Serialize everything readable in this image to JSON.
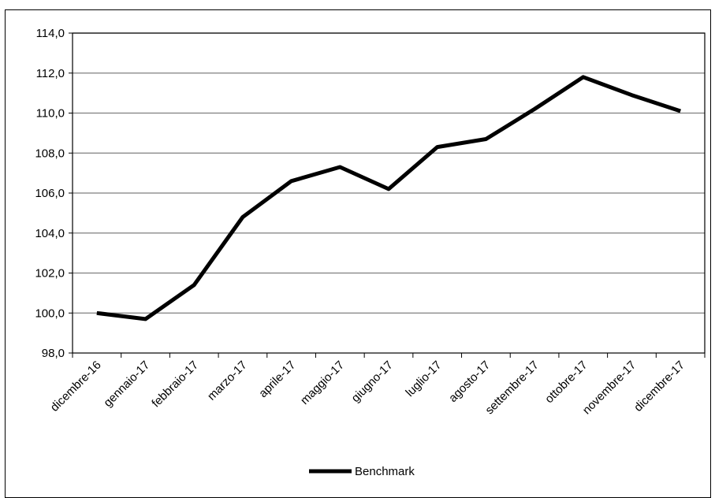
{
  "chart_data": {
    "type": "line",
    "title": "",
    "xlabel": "",
    "ylabel": "",
    "categories": [
      "dicembre-16",
      "gennaio-17",
      "febbraio-17",
      "marzo-17",
      "aprile-17",
      "maggio-17",
      "giugno-17",
      "luglio-17",
      "agosto-17",
      "settembre-17",
      "ottobre-17",
      "novembre-17",
      "dicembre-17"
    ],
    "series": [
      {
        "name": "Benchmark",
        "color": "#000000",
        "values": [
          100.0,
          99.7,
          101.4,
          104.8,
          106.6,
          107.3,
          106.2,
          108.3,
          108.7,
          110.2,
          111.8,
          110.9,
          110.1
        ]
      }
    ],
    "ylim": [
      98.0,
      114.0
    ],
    "yticks": [
      "98,0",
      "100,0",
      "102,0",
      "104,0",
      "106,0",
      "108,0",
      "110,0",
      "112,0",
      "114,0"
    ],
    "grid": "horizontal",
    "legend": "bottom-center"
  }
}
